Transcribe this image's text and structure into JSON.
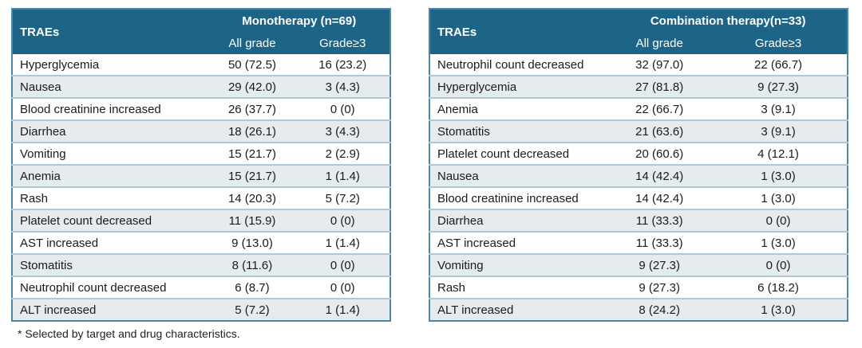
{
  "colors": {
    "header_bg": "#1d6486",
    "header_text": "#ffffff",
    "stripe_bg": "#e6ebee",
    "row_border": "#aec9d6",
    "outer_border": "#4d87a5",
    "body_text": "#1a1a1a"
  },
  "footnote": "* Selected by target and drug characteristics.",
  "tables": [
    {
      "name": "monotherapy",
      "row_header": "TRAEs",
      "group_header": "Monotherapy (n=69)",
      "sub_headers": {
        "all_grade": "All grade",
        "grade3": "Grade≥3"
      },
      "rows": [
        {
          "trae": "Hyperglycemia",
          "all_grade": "50 (72.5)",
          "grade3": "16 (23.2)"
        },
        {
          "trae": "Nausea",
          "all_grade": "29 (42.0)",
          "grade3": "3 (4.3)"
        },
        {
          "trae": "Blood creatinine increased",
          "all_grade": "26 (37.7)",
          "grade3": "0 (0)"
        },
        {
          "trae": "Diarrhea",
          "all_grade": "18 (26.1)",
          "grade3": "3 (4.3)"
        },
        {
          "trae": "Vomiting",
          "all_grade": "15 (21.7)",
          "grade3": "2 (2.9)"
        },
        {
          "trae": "Anemia",
          "all_grade": "15 (21.7)",
          "grade3": "1 (1.4)"
        },
        {
          "trae": "Rash",
          "all_grade": "14 (20.3)",
          "grade3": "5 (7.2)"
        },
        {
          "trae": "Platelet count decreased",
          "all_grade": "11 (15.9)",
          "grade3": "0 (0)"
        },
        {
          "trae": "AST increased",
          "all_grade": "9 (13.0)",
          "grade3": "1 (1.4)"
        },
        {
          "trae": "Stomatitis",
          "all_grade": "8 (11.6)",
          "grade3": "0 (0)"
        },
        {
          "trae": "Neutrophil count decreased",
          "all_grade": "6 (8.7)",
          "grade3": "0 (0)"
        },
        {
          "trae": "ALT increased",
          "all_grade": "5 (7.2)",
          "grade3": "1 (1.4)"
        }
      ]
    },
    {
      "name": "combination",
      "row_header": "TRAEs",
      "group_header": "Combination therapy(n=33)",
      "sub_headers": {
        "all_grade": "All grade",
        "grade3": "Grade≥3"
      },
      "rows": [
        {
          "trae": "Neutrophil count decreased",
          "all_grade": "32 (97.0)",
          "grade3": "22 (66.7)"
        },
        {
          "trae": "Hyperglycemia",
          "all_grade": "27 (81.8)",
          "grade3": "9 (27.3)"
        },
        {
          "trae": "Anemia",
          "all_grade": "22 (66.7)",
          "grade3": "3 (9.1)"
        },
        {
          "trae": "Stomatitis",
          "all_grade": "21 (63.6)",
          "grade3": "3 (9.1)"
        },
        {
          "trae": "Platelet count decreased",
          "all_grade": "20 (60.6)",
          "grade3": "4 (12.1)"
        },
        {
          "trae": "Nausea",
          "all_grade": "14 (42.4)",
          "grade3": "1 (3.0)"
        },
        {
          "trae": "Blood creatinine increased",
          "all_grade": "14 (42.4)",
          "grade3": "1 (3.0)"
        },
        {
          "trae": "Diarrhea",
          "all_grade": "11 (33.3)",
          "grade3": "0 (0)"
        },
        {
          "trae": "AST increased",
          "all_grade": "11 (33.3)",
          "grade3": "1 (3.0)"
        },
        {
          "trae": "Vomiting",
          "all_grade": "9 (27.3)",
          "grade3": "0 (0)"
        },
        {
          "trae": "Rash",
          "all_grade": "9 (27.3)",
          "grade3": "6 (18.2)"
        },
        {
          "trae": "ALT increased",
          "all_grade": "8 (24.2)",
          "grade3": "1 (3.0)"
        }
      ]
    }
  ]
}
